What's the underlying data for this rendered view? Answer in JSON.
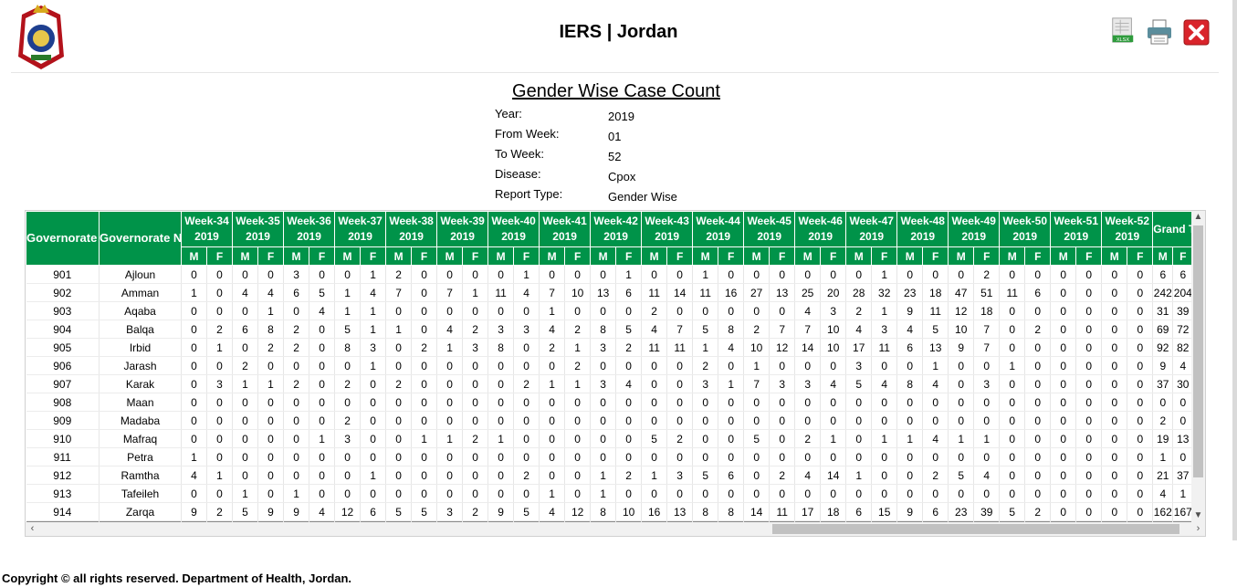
{
  "app": {
    "title": "IERS | Jordan",
    "footer": "Copyright © all rights reserved. Department of Health, Jordan."
  },
  "toolbar": {
    "export_icon": "xlsx-export-icon",
    "print_icon": "printer-icon",
    "close_icon": "close-icon"
  },
  "colors": {
    "header_green": "#009349",
    "close_red": "#d9242b"
  },
  "report": {
    "title": "Gender Wise Case Count",
    "meta": [
      {
        "label": "Year:",
        "value": "2019"
      },
      {
        "label": "From Week:",
        "value": "01"
      },
      {
        "label": "To Week:",
        "value": "52"
      },
      {
        "label": "Disease:",
        "value": "Cpox"
      },
      {
        "label": "Report Type:",
        "value": "Gender Wise"
      }
    ]
  },
  "table": {
    "col_code": "Governorate Code",
    "col_name": "Governorate Name",
    "col_total": "Grand Total",
    "m": "M",
    "f": "F",
    "year": "2019",
    "weeks": [
      "Week-34",
      "Week-35",
      "Week-36",
      "Week-37",
      "Week-38",
      "Week-39",
      "Week-40",
      "Week-41",
      "Week-42",
      "Week-43",
      "Week-44",
      "Week-45",
      "Week-46",
      "Week-47",
      "Week-48",
      "Week-49",
      "Week-50",
      "Week-51",
      "Week-52"
    ],
    "rows": [
      {
        "code": "901",
        "name": "Ajloun",
        "vals": [
          0,
          0,
          0,
          0,
          3,
          0,
          0,
          1,
          2,
          0,
          0,
          0,
          0,
          1,
          0,
          0,
          0,
          1,
          0,
          0,
          1,
          0,
          0,
          0,
          0,
          0,
          0,
          1,
          0,
          0,
          0,
          2,
          0,
          0,
          0,
          0,
          0,
          0
        ],
        "total": [
          6,
          6
        ]
      },
      {
        "code": "902",
        "name": "Amman",
        "vals": [
          1,
          0,
          4,
          4,
          6,
          5,
          1,
          4,
          7,
          0,
          7,
          1,
          11,
          4,
          7,
          10,
          13,
          6,
          11,
          14,
          11,
          16,
          27,
          13,
          25,
          20,
          28,
          32,
          23,
          18,
          47,
          51,
          11,
          6,
          0,
          0,
          0,
          0
        ],
        "total": [
          242,
          204
        ]
      },
      {
        "code": "903",
        "name": "Aqaba",
        "vals": [
          0,
          0,
          0,
          1,
          0,
          4,
          1,
          1,
          0,
          0,
          0,
          0,
          0,
          0,
          1,
          0,
          0,
          0,
          2,
          0,
          0,
          0,
          0,
          0,
          4,
          3,
          2,
          1,
          9,
          11,
          12,
          18,
          0,
          0,
          0,
          0,
          0,
          0
        ],
        "total": [
          31,
          39
        ]
      },
      {
        "code": "904",
        "name": "Balqa",
        "vals": [
          0,
          2,
          6,
          8,
          2,
          0,
          5,
          1,
          1,
          0,
          4,
          2,
          3,
          3,
          4,
          2,
          8,
          5,
          4,
          7,
          5,
          8,
          2,
          7,
          7,
          10,
          4,
          3,
          4,
          5,
          10,
          7,
          0,
          2,
          0,
          0,
          0,
          0
        ],
        "total": [
          69,
          72
        ]
      },
      {
        "code": "905",
        "name": "Irbid",
        "vals": [
          0,
          1,
          0,
          2,
          2,
          0,
          8,
          3,
          0,
          2,
          1,
          3,
          8,
          0,
          2,
          1,
          3,
          2,
          11,
          11,
          1,
          4,
          10,
          12,
          14,
          10,
          17,
          11,
          6,
          13,
          9,
          7,
          0,
          0,
          0,
          0,
          0,
          0
        ],
        "total": [
          92,
          82
        ]
      },
      {
        "code": "906",
        "name": "Jarash",
        "vals": [
          0,
          0,
          2,
          0,
          0,
          0,
          0,
          1,
          0,
          0,
          0,
          0,
          0,
          0,
          0,
          2,
          0,
          0,
          0,
          0,
          2,
          0,
          1,
          0,
          0,
          0,
          3,
          0,
          0,
          1,
          0,
          0,
          1,
          0,
          0,
          0,
          0,
          0
        ],
        "total": [
          9,
          4
        ]
      },
      {
        "code": "907",
        "name": "Karak",
        "vals": [
          0,
          3,
          1,
          1,
          2,
          0,
          2,
          0,
          2,
          0,
          0,
          0,
          0,
          2,
          1,
          1,
          3,
          4,
          0,
          0,
          3,
          1,
          7,
          3,
          3,
          4,
          5,
          4,
          8,
          4,
          0,
          3,
          0,
          0,
          0,
          0,
          0,
          0
        ],
        "total": [
          37,
          30
        ]
      },
      {
        "code": "908",
        "name": "Maan",
        "vals": [
          0,
          0,
          0,
          0,
          0,
          0,
          0,
          0,
          0,
          0,
          0,
          0,
          0,
          0,
          0,
          0,
          0,
          0,
          0,
          0,
          0,
          0,
          0,
          0,
          0,
          0,
          0,
          0,
          0,
          0,
          0,
          0,
          0,
          0,
          0,
          0,
          0,
          0
        ],
        "total": [
          0,
          0
        ]
      },
      {
        "code": "909",
        "name": "Madaba",
        "vals": [
          0,
          0,
          0,
          0,
          0,
          0,
          2,
          0,
          0,
          0,
          0,
          0,
          0,
          0,
          0,
          0,
          0,
          0,
          0,
          0,
          0,
          0,
          0,
          0,
          0,
          0,
          0,
          0,
          0,
          0,
          0,
          0,
          0,
          0,
          0,
          0,
          0,
          0
        ],
        "total": [
          2,
          0
        ]
      },
      {
        "code": "910",
        "name": "Mafraq",
        "vals": [
          0,
          0,
          0,
          0,
          0,
          1,
          3,
          0,
          0,
          1,
          1,
          2,
          1,
          0,
          0,
          0,
          0,
          0,
          5,
          2,
          0,
          0,
          5,
          0,
          2,
          1,
          0,
          1,
          1,
          4,
          1,
          1,
          0,
          0,
          0,
          0,
          0,
          0
        ],
        "total": [
          19,
          13
        ]
      },
      {
        "code": "911",
        "name": "Petra",
        "vals": [
          1,
          0,
          0,
          0,
          0,
          0,
          0,
          0,
          0,
          0,
          0,
          0,
          0,
          0,
          0,
          0,
          0,
          0,
          0,
          0,
          0,
          0,
          0,
          0,
          0,
          0,
          0,
          0,
          0,
          0,
          0,
          0,
          0,
          0,
          0,
          0,
          0,
          0
        ],
        "total": [
          1,
          0
        ]
      },
      {
        "code": "912",
        "name": "Ramtha",
        "vals": [
          4,
          1,
          0,
          0,
          0,
          0,
          0,
          1,
          0,
          0,
          0,
          0,
          0,
          2,
          0,
          0,
          1,
          2,
          1,
          3,
          5,
          6,
          0,
          2,
          4,
          14,
          1,
          0,
          0,
          2,
          5,
          4,
          0,
          0,
          0,
          0,
          0,
          0
        ],
        "total": [
          21,
          37
        ]
      },
      {
        "code": "913",
        "name": "Tafeileh",
        "vals": [
          0,
          0,
          1,
          0,
          1,
          0,
          0,
          0,
          0,
          0,
          0,
          0,
          0,
          0,
          1,
          0,
          1,
          0,
          0,
          0,
          0,
          0,
          0,
          0,
          0,
          0,
          0,
          0,
          0,
          0,
          0,
          0,
          0,
          0,
          0,
          0,
          0,
          0
        ],
        "total": [
          4,
          1
        ]
      },
      {
        "code": "914",
        "name": "Zarqa",
        "vals": [
          9,
          2,
          5,
          9,
          9,
          4,
          12,
          6,
          5,
          5,
          3,
          2,
          9,
          5,
          4,
          12,
          8,
          10,
          16,
          13,
          8,
          8,
          14,
          11,
          17,
          18,
          6,
          15,
          9,
          6,
          23,
          39,
          5,
          2,
          0,
          0,
          0,
          0
        ],
        "total": [
          162,
          167
        ]
      }
    ]
  }
}
